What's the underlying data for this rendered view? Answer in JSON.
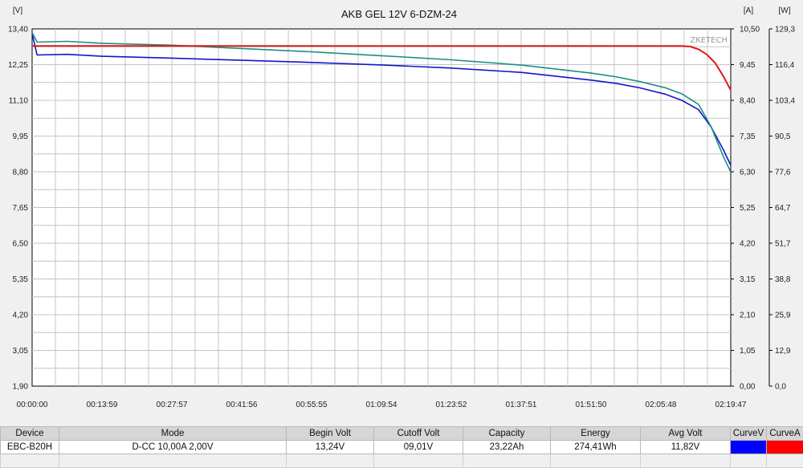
{
  "chart_data": {
    "type": "line",
    "title": "AKB GEL 12V 6-DZM-24",
    "watermark": "ZKETECH",
    "x_ticks": [
      "00:00:00",
      "00:13:59",
      "00:27:57",
      "00:41:56",
      "00:55:55",
      "01:09:54",
      "01:23:52",
      "01:37:51",
      "01:51:50",
      "02:05:48",
      "02:19:47"
    ],
    "x_range_s": [
      0,
      8387
    ],
    "axes": {
      "voltage": {
        "unit": "[V]",
        "range": [
          1.9,
          13.4
        ],
        "ticks": [
          "1,90",
          "3,05",
          "4,20",
          "5,35",
          "6,50",
          "7,65",
          "8,80",
          "9,95",
          "11,10",
          "12,25",
          "13,40"
        ]
      },
      "current": {
        "unit": "[A]",
        "range": [
          0,
          10.5
        ],
        "ticks": [
          "0,00",
          "1,05",
          "2,10",
          "3,15",
          "4,20",
          "5,25",
          "6,30",
          "7,35",
          "8,40",
          "9,45",
          "10,50"
        ]
      },
      "power": {
        "unit": "[W]",
        "range": [
          0,
          129.3
        ],
        "ticks": [
          "0,0",
          "12,9",
          "25,9",
          "38,8",
          "51,7",
          "64,7",
          "77,6",
          "90,5",
          "103,4",
          "116,4",
          "129,3"
        ]
      }
    },
    "grid": true,
    "series": [
      {
        "axis": "voltage",
        "color": "#1414c8",
        "x": [
          0,
          60,
          420,
          839,
          1678,
          2517,
          3356,
          4195,
          5034,
          5873,
          6712,
          7000,
          7300,
          7600,
          7800,
          8000,
          8150,
          8300,
          8387
        ],
        "y": [
          13.24,
          12.56,
          12.58,
          12.52,
          12.46,
          12.39,
          12.32,
          12.24,
          12.14,
          12.0,
          11.75,
          11.65,
          11.5,
          11.3,
          11.1,
          10.8,
          10.25,
          9.5,
          9.01
        ]
      },
      {
        "axis": "power",
        "color": "#1a9080",
        "x": [
          0,
          60,
          420,
          839,
          1678,
          2517,
          3356,
          4195,
          5034,
          5873,
          6712,
          7000,
          7300,
          7600,
          7800,
          8000,
          8150,
          8300,
          8387
        ],
        "y": [
          128.0,
          124.5,
          124.8,
          124.1,
          123.4,
          122.2,
          121.0,
          119.6,
          118.1,
          116.2,
          113.3,
          112.0,
          110.2,
          108.0,
          105.8,
          102.0,
          94.0,
          83.0,
          77.5
        ]
      },
      {
        "axis": "current",
        "color": "#e01818",
        "x": [
          0,
          7600,
          7800,
          7900,
          8000,
          8100,
          8200,
          8300,
          8387
        ],
        "y": [
          10.0,
          10.0,
          10.0,
          9.98,
          9.9,
          9.75,
          9.5,
          9.1,
          8.7
        ]
      }
    ]
  },
  "table": {
    "headers": [
      "Device",
      "Mode",
      "Begin Volt",
      "Cutoff Volt",
      "Capacity",
      "Energy",
      "Avg Volt",
      "CurveV",
      "CurveA"
    ],
    "values": [
      "EBC-B20H",
      "D-CC  10,00A  2,00V",
      "13,24V",
      "09,01V",
      "23,22Ah",
      "274,41Wh",
      "11,82V"
    ],
    "swatch_v_color": "#0000ff",
    "swatch_a_color": "#ff0000"
  }
}
